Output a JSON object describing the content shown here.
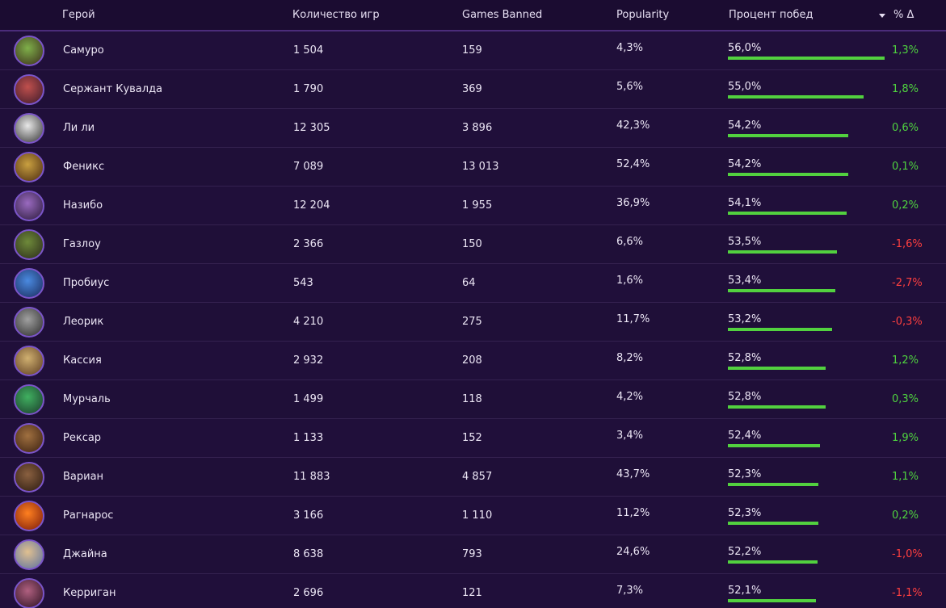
{
  "table": {
    "columns": [
      "Герой",
      "Количество игр",
      "Games Banned",
      "Popularity",
      "Процент побед",
      "% Δ"
    ],
    "rows": [
      {
        "hero": "Самуро",
        "games": "1 504",
        "banned": "159",
        "popularity": "4,3%",
        "win_rate": {
          "value": 56.0,
          "label": "56,0%"
        },
        "delta": "1,3%"
      },
      {
        "hero": "Сержант Кувалда",
        "games": "1 790",
        "banned": "369",
        "popularity": "5,6%",
        "win_rate": {
          "value": 55.0,
          "label": "55,0%"
        },
        "delta": "1,8%"
      },
      {
        "hero": "Ли ли",
        "games": "12 305",
        "banned": "3 896",
        "popularity": "42,3%",
        "win_rate": {
          "value": 54.2,
          "label": "54,2%"
        },
        "delta": "0,6%"
      },
      {
        "hero": "Феникс",
        "games": "7 089",
        "banned": "13 013",
        "popularity": "52,4%",
        "win_rate": {
          "value": 54.2,
          "label": "54,2%"
        },
        "delta": "0,1%"
      },
      {
        "hero": "Назибо",
        "games": "12 204",
        "banned": "1 955",
        "popularity": "36,9%",
        "win_rate": {
          "value": 54.1,
          "label": "54,1%"
        },
        "delta": "0,2%"
      },
      {
        "hero": "Газлоу",
        "games": "2 366",
        "banned": "150",
        "popularity": "6,6%",
        "win_rate": {
          "value": 53.5,
          "label": "53,5%"
        },
        "delta": "-1,6%"
      },
      {
        "hero": "Пробиус",
        "games": "543",
        "banned": "64",
        "popularity": "1,6%",
        "win_rate": {
          "value": 53.4,
          "label": "53,4%"
        },
        "delta": "-2,7%"
      },
      {
        "hero": "Леорик",
        "games": "4 210",
        "banned": "275",
        "popularity": "11,7%",
        "win_rate": {
          "value": 53.2,
          "label": "53,2%"
        },
        "delta": "-0,3%"
      },
      {
        "hero": "Кассия",
        "games": "2 932",
        "banned": "208",
        "popularity": "8,2%",
        "win_rate": {
          "value": 52.8,
          "label": "52,8%"
        },
        "delta": "1,2%"
      },
      {
        "hero": "Мурчаль",
        "games": "1 499",
        "banned": "118",
        "popularity": "4,2%",
        "win_rate": {
          "value": 52.8,
          "label": "52,8%"
        },
        "delta": "0,3%"
      },
      {
        "hero": "Рексар",
        "games": "1 133",
        "banned": "152",
        "popularity": "3,4%",
        "win_rate": {
          "value": 52.4,
          "label": "52,4%"
        },
        "delta": "1,9%"
      },
      {
        "hero": "Вариан",
        "games": "11 883",
        "banned": "4 857",
        "popularity": "43,7%",
        "win_rate": {
          "value": 52.3,
          "label": "52,3%"
        },
        "delta": "1,1%"
      },
      {
        "hero": "Рагнарос",
        "games": "3 166",
        "banned": "1 110",
        "popularity": "11,2%",
        "win_rate": {
          "value": 52.3,
          "label": "52,3%"
        },
        "delta": "0,2%"
      },
      {
        "hero": "Джайна",
        "games": "8 638",
        "banned": "793",
        "popularity": "24,6%",
        "win_rate": {
          "value": 52.2,
          "label": "52,2%"
        },
        "delta": "-1,0%"
      },
      {
        "hero": "Керриган",
        "games": "2 696",
        "banned": "121",
        "popularity": "7,3%",
        "win_rate": {
          "value": 52.1,
          "label": "52,1%"
        },
        "delta": "-1,1%"
      }
    ]
  }
}
